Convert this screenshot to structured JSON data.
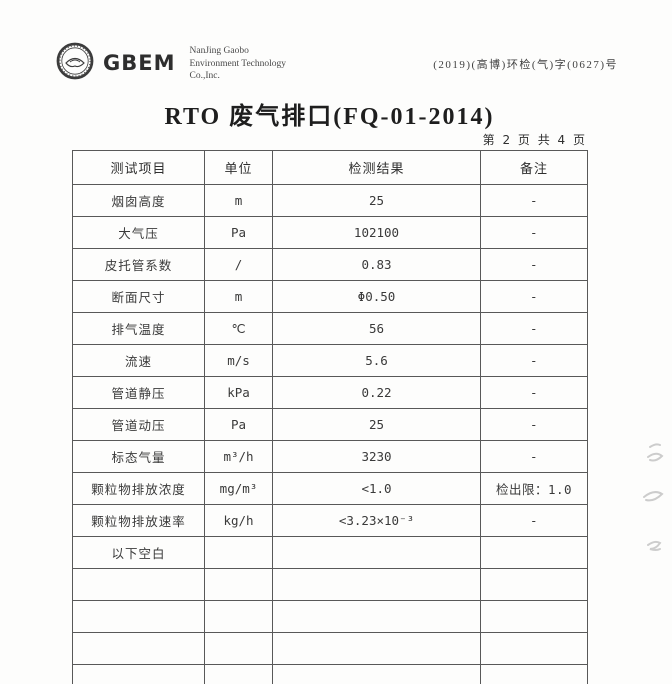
{
  "colors": {
    "text": "#3a3a3a",
    "border": "#585858",
    "logo": "#3c3c3c"
  },
  "header": {
    "brand": "GBEM",
    "company_lines": [
      "NanJing Gaobo",
      "Environment Technology",
      "Co.,Inc."
    ],
    "doc_number": "(2019)(高博)环检(气)字(0627)号"
  },
  "title": "RTO 废气排口(FQ-01-2014)",
  "page_indicator": "第 2 页 共 4 页",
  "table": {
    "headers": [
      "测试项目",
      "单位",
      "检测结果",
      "备注"
    ],
    "rows": [
      {
        "item": "烟囱高度",
        "unit": "m",
        "result": "25",
        "note": "-"
      },
      {
        "item": "大气压",
        "unit": "Pa",
        "result": "102100",
        "note": "-"
      },
      {
        "item": "皮托管系数",
        "unit": "/",
        "result": "0.83",
        "note": "-"
      },
      {
        "item": "断面尺寸",
        "unit": "m",
        "result": "Φ0.50",
        "note": "-"
      },
      {
        "item": "排气温度",
        "unit": "℃",
        "result": "56",
        "note": "-"
      },
      {
        "item": "流速",
        "unit": "m/s",
        "result": "5.6",
        "note": "-"
      },
      {
        "item": "管道静压",
        "unit": "kPa",
        "result": "0.22",
        "note": "-"
      },
      {
        "item": "管道动压",
        "unit": "Pa",
        "result": "25",
        "note": "-"
      },
      {
        "item": "标态气量",
        "unit": "m³/h",
        "result": "3230",
        "note": "-"
      },
      {
        "item": "颗粒物排放浓度",
        "unit": "mg/m³",
        "result": "<1.0",
        "note": "检出限：1.0"
      },
      {
        "item": "颗粒物排放速率",
        "unit": "kg/h",
        "result": "<3.23×10⁻³",
        "note": "-"
      },
      {
        "item": "以下空白",
        "unit": "",
        "result": "",
        "note": ""
      },
      {
        "item": "",
        "unit": "",
        "result": "",
        "note": ""
      },
      {
        "item": "",
        "unit": "",
        "result": "",
        "note": ""
      },
      {
        "item": "",
        "unit": "",
        "result": "",
        "note": ""
      },
      {
        "item": "",
        "unit": "",
        "result": "",
        "note": ""
      }
    ]
  }
}
